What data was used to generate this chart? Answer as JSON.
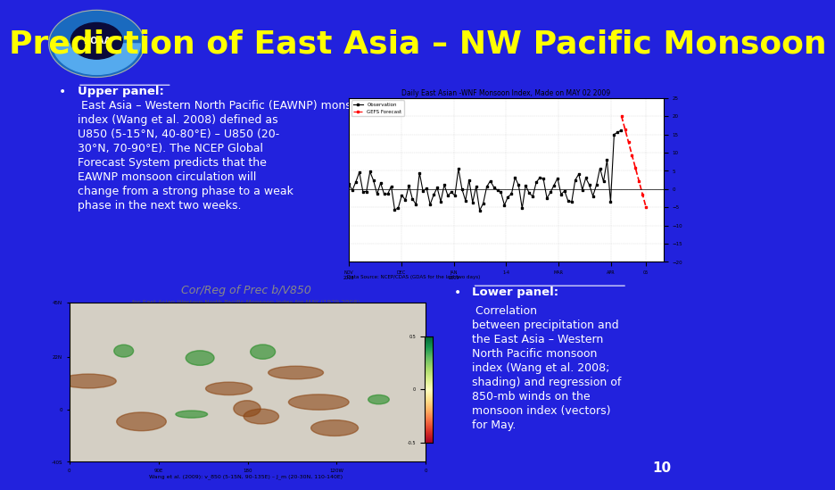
{
  "bg_color": "#2222dd",
  "title": "Prediction of East Asia – NW Pacific Monsoon",
  "title_color": "#ffff00",
  "title_fontsize": 26,
  "title_fontweight": "bold",
  "bullet_text_upper": "Upper panel: East Asia – Western North Pacific (EAWNP) monsoon index (Wang et al. 2008) defined as U850 (5-15°N, 40-80°E) – U850 (20-30°N, 70-90°E). The NCEP Global Forecast System predicts that the EAWNP monsoon circulation will change from a strong phase to a weak phase in the next two weeks.",
  "bullet_text_lower": "Lower panel: Correlation between precipitation and the East Asia – Western North Pacific monsoon index (Wang et al. 2008; shading) and regression of 850-mb winds on the monsoon index (vectors) for May.",
  "text_color": "#ffffff",
  "text_fontsize": 10,
  "upper_panel_label": "Upper panel:",
  "lower_panel_label": "Lower panel:",
  "page_number": "10",
  "upper_chart_title": "Daily East Asian -WNF Monsoon Index, Made on MAY 02 2009",
  "upper_chart_data_source": "Data Source: NCEP/CDAS (GDAS for the last two days)",
  "lower_chart_title": "Cor/Reg of Prec b/V850",
  "lower_chart_subtitle": "for East Asian-Western North Pacific Monsoon Index for MAY (1979-2008)",
  "lower_chart_caption": "Wang et al. (2009): v_850 (5-15N, 90-135E) – J_m (20-30N, 110-140E)"
}
